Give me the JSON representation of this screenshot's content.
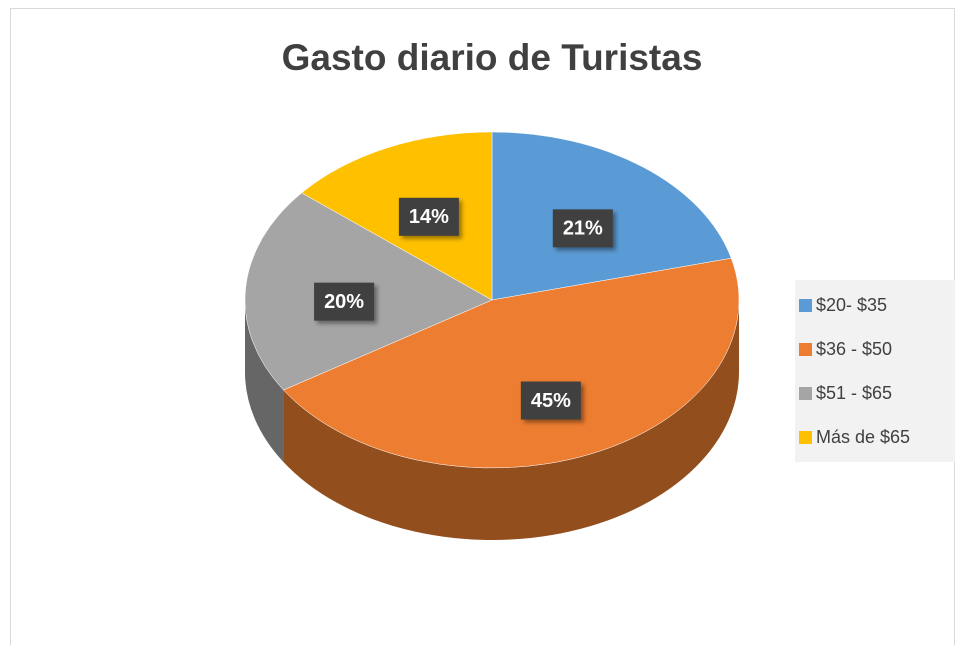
{
  "chart_data": {
    "type": "pie",
    "title": "Gasto diario de Turistas",
    "categories": [
      "$20- $35",
      "$36 - $50",
      "$51 - $65",
      "Más de $65"
    ],
    "values": [
      21,
      45,
      20,
      14
    ],
    "value_labels": [
      "21%",
      "45%",
      "20%",
      "14%"
    ],
    "colors": [
      "#5b9bd5",
      "#ed7d31",
      "#a5a5a5",
      "#ffc000"
    ],
    "legend": "right"
  }
}
